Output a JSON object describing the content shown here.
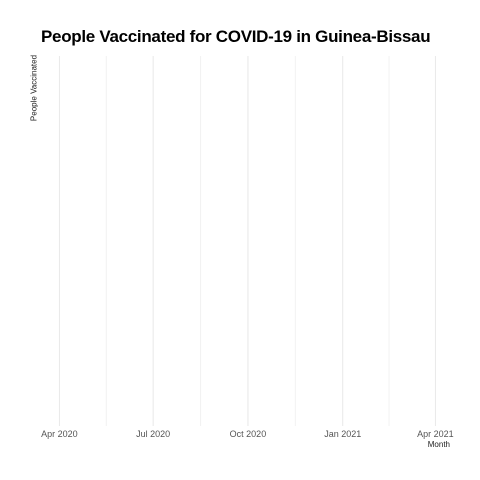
{
  "chart_data": {
    "type": "line",
    "title": "People Vaccinated for COVID-19 in Guinea-Bissau",
    "xlabel": "Month",
    "ylabel": "People Vaccinated",
    "x_ticks": [
      "Apr 2020",
      "Jul 2020",
      "Oct 2020",
      "Jan 2021",
      "Apr 2021"
    ],
    "x_range": [
      "2020-03-18",
      "2021-04-20"
    ],
    "grid": true,
    "series": []
  },
  "colors": {
    "grid_major": "#e8e8e8",
    "grid_minor": "#f2f2f2"
  }
}
